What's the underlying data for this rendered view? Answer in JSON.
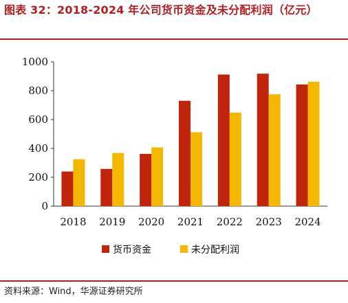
{
  "header": {
    "title": "图表 32：2018-2024 年公司货币资金及未分配利润（亿元）"
  },
  "footer": {
    "source": "资料来源：Wind，华源证券研究所"
  },
  "colors": {
    "title": "#b11f24",
    "series_0": "#c0250c",
    "series_1": "#f5b800"
  },
  "chart_data": {
    "type": "bar",
    "categories": [
      "2018",
      "2019",
      "2020",
      "2021",
      "2022",
      "2023",
      "2024"
    ],
    "series": [
      {
        "name": "货币资金",
        "values": [
          240,
          258,
          362,
          730,
          912,
          918,
          843
        ]
      },
      {
        "name": "未分配利润",
        "values": [
          325,
          368,
          407,
          512,
          648,
          775,
          862
        ]
      }
    ],
    "ylim": [
      0,
      1000
    ],
    "yticks": [
      "0",
      "200",
      "400",
      "600",
      "800",
      "1000"
    ],
    "legend": "bottom",
    "grid": false
  }
}
